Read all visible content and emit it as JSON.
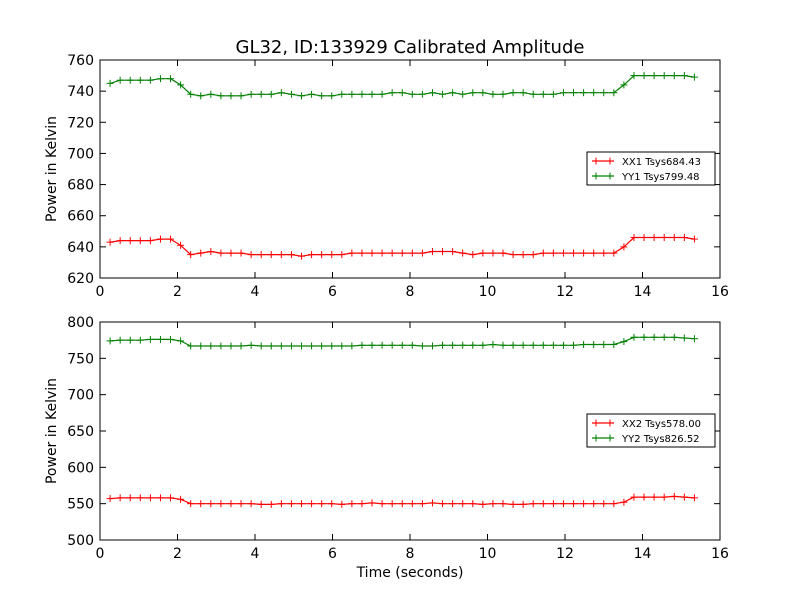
{
  "figure": {
    "title": "GL32, ID:133929 Calibrated Amplitude"
  },
  "chart_data": [
    {
      "type": "line",
      "title": "GL32, ID:133929 Calibrated Amplitude",
      "xlabel": "",
      "ylabel": "Power in Kelvin",
      "xlim": [
        0,
        16
      ],
      "ylim": [
        620,
        760
      ],
      "xticks": [
        "0",
        "2",
        "4",
        "6",
        "8",
        "10",
        "12",
        "14",
        "16"
      ],
      "yticks": [
        "620",
        "640",
        "660",
        "680",
        "700",
        "720",
        "740",
        "760"
      ],
      "grid": false,
      "legend_position": "right",
      "x": [
        0.26,
        0.52,
        0.78,
        1.04,
        1.3,
        1.56,
        1.82,
        2.08,
        2.34,
        2.6,
        2.86,
        3.12,
        3.38,
        3.64,
        3.9,
        4.16,
        4.42,
        4.68,
        4.94,
        5.2,
        5.46,
        5.72,
        5.98,
        6.24,
        6.5,
        6.76,
        7.02,
        7.28,
        7.54,
        7.8,
        8.06,
        8.32,
        8.58,
        8.84,
        9.1,
        9.36,
        9.62,
        9.88,
        10.14,
        10.4,
        10.66,
        10.92,
        11.18,
        11.44,
        11.7,
        11.96,
        12.22,
        12.48,
        12.74,
        13.0,
        13.26,
        13.52,
        13.78,
        14.04,
        14.3,
        14.56,
        14.82,
        15.08,
        15.34
      ],
      "series": [
        {
          "name": "XX1 Tsys684.43",
          "color": "#ff0000",
          "values": [
            643,
            644,
            644,
            644,
            644,
            645,
            645,
            641,
            635,
            636,
            637,
            636,
            636,
            636,
            635,
            635,
            635,
            635,
            635,
            634,
            635,
            635,
            635,
            635,
            636,
            636,
            636,
            636,
            636,
            636,
            636,
            636,
            637,
            637,
            637,
            636,
            635,
            636,
            636,
            636,
            635,
            635,
            635,
            636,
            636,
            636,
            636,
            636,
            636,
            636,
            636,
            640,
            646,
            646,
            646,
            646,
            646,
            646,
            645
          ]
        },
        {
          "name": "YY1 Tsys799.48",
          "color": "#008000",
          "values": [
            745,
            747,
            747,
            747,
            747,
            748,
            748,
            744,
            738,
            737,
            738,
            737,
            737,
            737,
            738,
            738,
            738,
            739,
            738,
            737,
            738,
            737,
            737,
            738,
            738,
            738,
            738,
            738,
            739,
            739,
            738,
            738,
            739,
            738,
            739,
            738,
            739,
            739,
            738,
            738,
            739,
            739,
            738,
            738,
            738,
            739,
            739,
            739,
            739,
            739,
            739,
            744,
            750,
            750,
            750,
            750,
            750,
            750,
            749
          ]
        }
      ]
    },
    {
      "type": "line",
      "title": "",
      "xlabel": "Time (seconds)",
      "ylabel": "Power in Kelvin",
      "xlim": [
        0,
        16
      ],
      "ylim": [
        500,
        800
      ],
      "xticks": [
        "0",
        "2",
        "4",
        "6",
        "8",
        "10",
        "12",
        "14",
        "16"
      ],
      "yticks": [
        "500",
        "550",
        "600",
        "650",
        "700",
        "750",
        "800"
      ],
      "grid": false,
      "legend_position": "right",
      "x": [
        0.26,
        0.52,
        0.78,
        1.04,
        1.3,
        1.56,
        1.82,
        2.08,
        2.34,
        2.6,
        2.86,
        3.12,
        3.38,
        3.64,
        3.9,
        4.16,
        4.42,
        4.68,
        4.94,
        5.2,
        5.46,
        5.72,
        5.98,
        6.24,
        6.5,
        6.76,
        7.02,
        7.28,
        7.54,
        7.8,
        8.06,
        8.32,
        8.58,
        8.84,
        9.1,
        9.36,
        9.62,
        9.88,
        10.14,
        10.4,
        10.66,
        10.92,
        11.18,
        11.44,
        11.7,
        11.96,
        12.22,
        12.48,
        12.74,
        13.0,
        13.26,
        13.52,
        13.78,
        14.04,
        14.3,
        14.56,
        14.82,
        15.08,
        15.34
      ],
      "series": [
        {
          "name": "XX2 Tsys578.00",
          "color": "#ff0000",
          "values": [
            557,
            558,
            558,
            558,
            558,
            558,
            558,
            556,
            550,
            550,
            550,
            550,
            550,
            550,
            550,
            549,
            549,
            550,
            550,
            550,
            550,
            550,
            550,
            549,
            550,
            550,
            551,
            550,
            550,
            550,
            550,
            550,
            551,
            550,
            550,
            550,
            550,
            549,
            550,
            550,
            549,
            549,
            550,
            550,
            550,
            550,
            550,
            550,
            550,
            550,
            550,
            552,
            559,
            559,
            559,
            559,
            560,
            559,
            558
          ]
        },
        {
          "name": "YY2 Tsys826.52",
          "color": "#008000",
          "values": [
            774,
            775,
            775,
            775,
            776,
            776,
            776,
            774,
            767,
            767,
            767,
            767,
            767,
            767,
            768,
            767,
            767,
            767,
            767,
            767,
            767,
            767,
            767,
            767,
            767,
            768,
            768,
            768,
            768,
            768,
            768,
            767,
            767,
            768,
            768,
            768,
            768,
            768,
            769,
            768,
            768,
            768,
            768,
            768,
            768,
            768,
            768,
            769,
            769,
            769,
            769,
            773,
            779,
            779,
            779,
            779,
            779,
            778,
            777
          ]
        }
      ]
    }
  ]
}
